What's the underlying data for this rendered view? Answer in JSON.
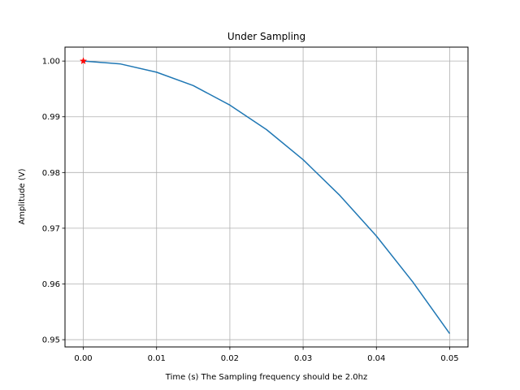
{
  "chart_data": {
    "type": "line",
    "title": "Under Sampling",
    "xlabel": "Time (s)  The Sampling frequency should be 2.0hz",
    "ylabel": "Amplitude (V)",
    "xlim": [
      -0.0025,
      0.0525
    ],
    "ylim": [
      0.9487,
      1.0025
    ],
    "grid": true,
    "x_ticks": [
      0.0,
      0.01,
      0.02,
      0.03,
      0.04,
      0.05
    ],
    "x_tick_labels": [
      "0.00",
      "0.01",
      "0.02",
      "0.03",
      "0.04",
      "0.05"
    ],
    "y_ticks": [
      0.95,
      0.96,
      0.97,
      0.98,
      0.99,
      1.0
    ],
    "y_tick_labels": [
      "0.95",
      "0.96",
      "0.97",
      "0.98",
      "0.99",
      "1.00"
    ],
    "series": [
      {
        "type": "line",
        "color": "#1f77b4",
        "x": [
          0.0,
          0.005,
          0.01,
          0.015,
          0.02,
          0.025,
          0.03,
          0.035,
          0.04,
          0.045,
          0.05
        ],
        "y": [
          1.0,
          0.9995,
          0.998,
          0.9956,
          0.9921,
          0.9877,
          0.9823,
          0.9759,
          0.9686,
          0.9603,
          0.9511
        ]
      },
      {
        "type": "marker",
        "marker": "star",
        "color": "#ff0000",
        "x": [
          0.0
        ],
        "y": [
          1.0
        ]
      }
    ]
  }
}
